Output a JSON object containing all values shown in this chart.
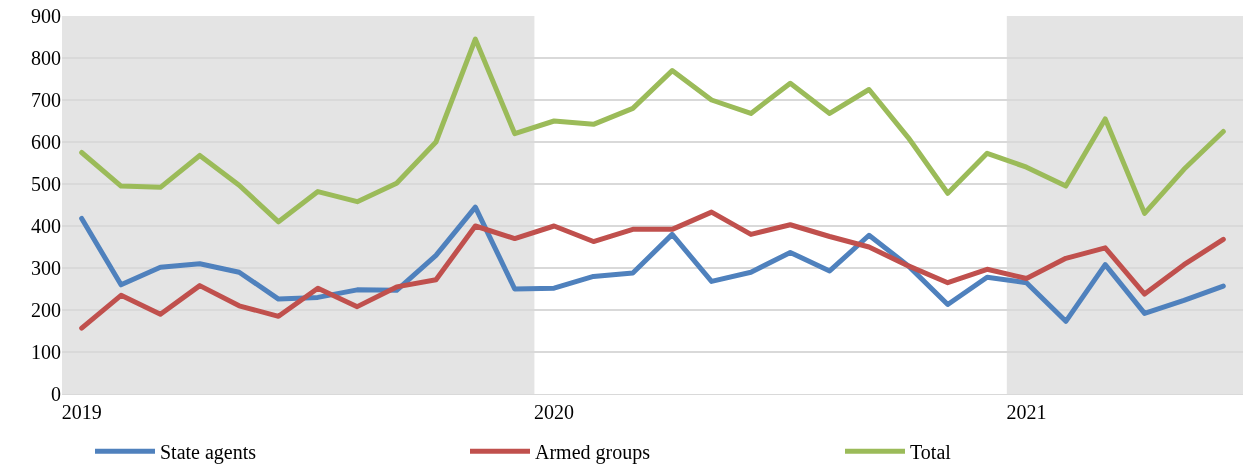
{
  "chart_data": {
    "type": "line",
    "categories": [
      "2019",
      null,
      null,
      null,
      null,
      null,
      null,
      null,
      null,
      null,
      null,
      null,
      "2020",
      null,
      null,
      null,
      null,
      null,
      null,
      null,
      null,
      null,
      null,
      null,
      "2021",
      null,
      null,
      null,
      null,
      null
    ],
    "series": [
      {
        "name": "State agents",
        "color": "#4f81bd",
        "values": [
          418,
          260,
          302,
          310,
          290,
          226,
          230,
          248,
          247,
          330,
          445,
          250,
          252,
          280,
          288,
          380,
          268,
          290,
          337,
          293,
          378,
          305,
          213,
          278,
          265,
          173,
          308,
          192,
          223,
          257
        ]
      },
      {
        "name": "Armed groups",
        "color": "#c0504d",
        "values": [
          157,
          235,
          190,
          258,
          210,
          185,
          252,
          208,
          255,
          272,
          400,
          370,
          400,
          363,
          392,
          392,
          433,
          380,
          403,
          375,
          350,
          305,
          265,
          297,
          275,
          323,
          348,
          238,
          308,
          368
        ]
      },
      {
        "name": "Total",
        "color": "#9bbb59",
        "values": [
          575,
          495,
          492,
          568,
          497,
          410,
          482,
          458,
          502,
          600,
          845,
          620,
          650,
          642,
          680,
          770,
          700,
          668,
          740,
          668,
          725,
          610,
          478,
          573,
          540,
          495,
          655,
          430,
          535,
          625
        ]
      }
    ],
    "ylim": [
      0,
      900
    ],
    "yticks": [
      0,
      100,
      200,
      300,
      400,
      500,
      600,
      700,
      800,
      900
    ],
    "grid": "y",
    "legend": "bottom",
    "marker": "none",
    "line_style": "solid"
  }
}
